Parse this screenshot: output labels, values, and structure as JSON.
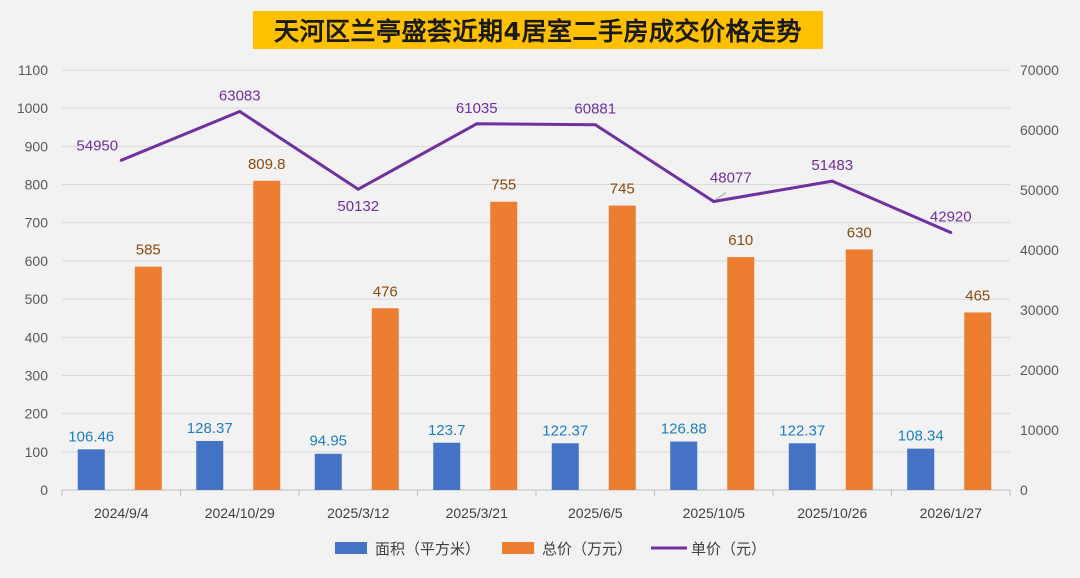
{
  "chart_data": {
    "type": "bar",
    "title": "天河区兰亭盛荟近期4居室二手房成交价格走势",
    "categories": [
      "2024/9/4",
      "2024/10/29",
      "2025/3/12",
      "2025/3/21",
      "2025/6/5",
      "2025/10/5",
      "2025/10/26",
      "2026/1/27"
    ],
    "series": [
      {
        "name": "面积（平方米）",
        "type": "bar",
        "axis": "left",
        "color": "#4472c4",
        "values": [
          106.46,
          128.37,
          94.95,
          123.7,
          122.37,
          126.88,
          122.37,
          108.34
        ],
        "labels": [
          "106.46",
          "128.37",
          "94.95",
          "123.7",
          "122.37",
          "126.88",
          "122.37",
          "108.34"
        ]
      },
      {
        "name": "总价（万元）",
        "type": "bar",
        "axis": "left",
        "color": "#ed7d31",
        "values": [
          585,
          809.8,
          476,
          755,
          745,
          610,
          630,
          465
        ],
        "labels": [
          "585",
          "809.8",
          "476",
          "755",
          "745",
          "610",
          "630",
          "465"
        ]
      },
      {
        "name": "单价（元）",
        "type": "line",
        "axis": "right",
        "color": "#7030a0",
        "values": [
          54950,
          63083,
          50132,
          61035,
          60881,
          48077,
          51483,
          42920
        ],
        "labels": [
          "54950",
          "63083",
          "50132",
          "61035",
          "60881",
          "48077",
          "51483",
          "42920"
        ]
      }
    ],
    "left_axis": {
      "ylim": [
        0,
        1100
      ],
      "ticks": [
        "0",
        "100",
        "200",
        "300",
        "400",
        "500",
        "600",
        "700",
        "800",
        "900",
        "1000",
        "1100"
      ]
    },
    "right_axis": {
      "ylim": [
        0,
        70000
      ],
      "ticks": [
        "0",
        "10000",
        "20000",
        "30000",
        "40000",
        "50000",
        "60000",
        "70000"
      ]
    },
    "grid": true,
    "legend_position": "bottom",
    "title_background": "#ffc000"
  }
}
